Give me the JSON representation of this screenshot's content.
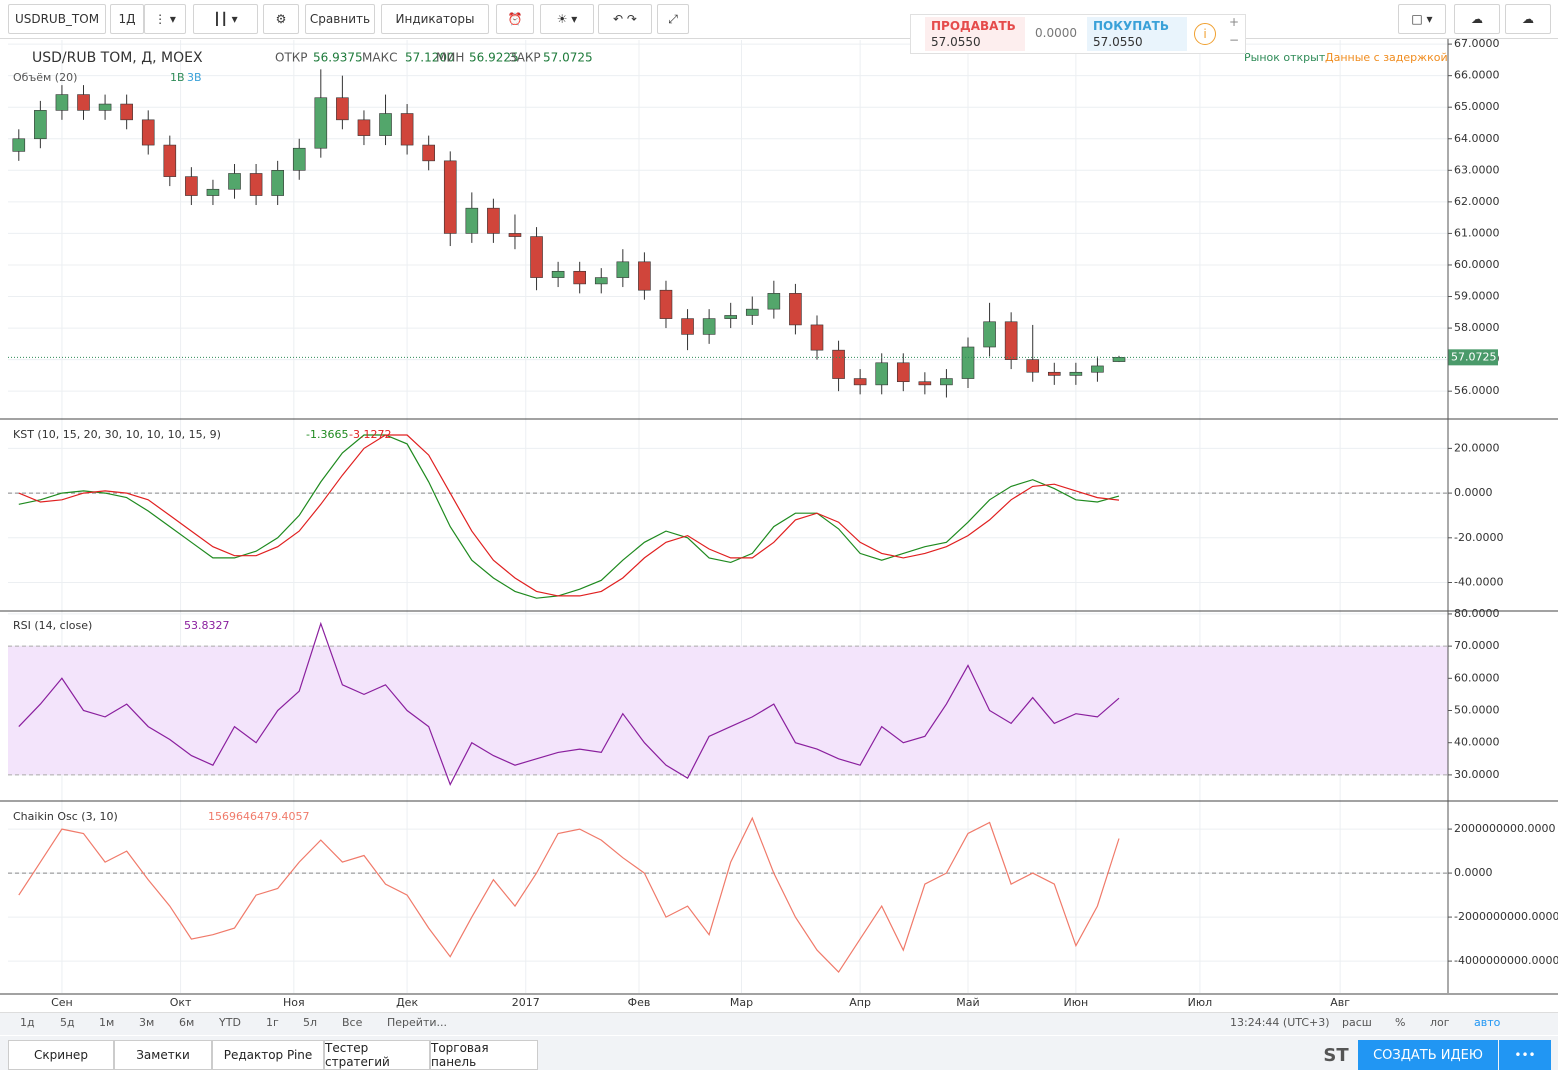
{
  "toolbar": {
    "symbol": "USDRUB_TOM",
    "interval": "1Д",
    "compare": "Сравнить",
    "indicators": "Индикаторы"
  },
  "trade": {
    "sell_label": "ПРОДАВАТЬ",
    "sell_price": "57.0550",
    "spread": "0.0000",
    "buy_label": "ПОКУПАТЬ",
    "buy_price": "57.0550"
  },
  "header": {
    "title": "USD/RUB TOM, Д, MOEX",
    "open_label": "ОТКР",
    "open": "56.9375",
    "high_label": "МАКС",
    "high": "57.1200",
    "low_label": "МИН",
    "low": "56.9225",
    "close_label": "ЗАКР",
    "close": "57.0725",
    "market_status": "Рынок открыт",
    "delay": "Данные с задержкой",
    "volume_legend": "Объём (20)",
    "volume_a": "1B",
    "volume_b": "3B"
  },
  "chart": {
    "x": [
      -8,
      -4,
      0,
      4,
      8,
      12,
      16,
      20,
      24,
      28,
      32,
      36,
      40,
      44,
      48,
      52,
      56,
      60,
      64,
      68,
      72,
      76,
      80,
      84,
      88,
      92,
      96,
      100,
      104,
      108,
      112,
      116,
      120,
      124,
      128,
      132,
      136,
      140,
      144,
      148,
      152,
      156,
      160,
      164,
      168,
      172,
      176,
      180,
      184,
      188,
      192,
      196
    ],
    "xlim": [
      -10,
      257
    ],
    "xticks": [
      {
        "value": 0,
        "label": "Сен"
      },
      {
        "value": 22,
        "label": "Окт"
      },
      {
        "value": 43,
        "label": "Ноя"
      },
      {
        "value": 64,
        "label": "Дек"
      },
      {
        "value": 86,
        "label": "2017"
      },
      {
        "value": 107,
        "label": "Фев"
      },
      {
        "value": 126,
        "label": "Мар"
      },
      {
        "value": 148,
        "label": "Апр"
      },
      {
        "value": 168,
        "label": "Май"
      },
      {
        "value": 188,
        "label": "Июн"
      },
      {
        "value": 211,
        "label": "Июл"
      },
      {
        "value": 237,
        "label": "Авг"
      }
    ],
    "grid": true,
    "candles": {
      "type": "candlestick",
      "up_color": "#53a66b",
      "down_color": "#d0453b",
      "open": [
        63.6,
        64.0,
        64.9,
        65.4,
        64.9,
        65.1,
        64.6,
        63.8,
        62.8,
        62.2,
        62.4,
        62.9,
        62.2,
        63.0,
        63.7,
        65.3,
        64.6,
        64.1,
        64.8,
        63.8,
        63.3,
        61.0,
        61.8,
        61.0,
        60.9,
        59.6,
        59.8,
        59.4,
        59.6,
        60.1,
        59.2,
        58.3,
        57.8,
        58.3,
        58.4,
        58.6,
        59.1,
        58.1,
        57.3,
        56.4,
        56.2,
        56.9,
        56.3,
        56.2,
        56.4,
        57.4,
        58.2,
        57.0,
        56.6,
        56.5,
        56.6,
        56.9375
      ],
      "high": [
        64.3,
        65.2,
        65.7,
        65.7,
        65.4,
        65.4,
        64.9,
        64.1,
        63.1,
        62.7,
        63.2,
        63.2,
        63.3,
        64.0,
        66.2,
        66.0,
        64.9,
        65.4,
        65.1,
        64.1,
        63.6,
        62.3,
        62.1,
        61.6,
        61.2,
        60.1,
        60.1,
        59.9,
        60.5,
        60.4,
        59.5,
        58.6,
        58.6,
        58.8,
        59.0,
        59.5,
        59.4,
        58.4,
        57.6,
        56.7,
        57.2,
        57.2,
        56.6,
        56.7,
        57.7,
        58.8,
        58.5,
        58.1,
        56.9,
        56.9,
        57.1,
        57.12
      ],
      "low": [
        63.3,
        63.7,
        64.6,
        64.6,
        64.6,
        64.3,
        63.5,
        62.5,
        61.9,
        61.9,
        62.1,
        61.9,
        61.9,
        62.7,
        63.4,
        64.3,
        63.8,
        63.8,
        63.5,
        63.0,
        60.6,
        60.7,
        60.7,
        60.5,
        59.2,
        59.3,
        59.1,
        59.1,
        59.3,
        58.9,
        58.0,
        57.3,
        57.5,
        58.0,
        58.1,
        58.3,
        57.8,
        57.0,
        56.0,
        55.9,
        55.9,
        56.0,
        55.9,
        55.8,
        56.1,
        57.1,
        56.7,
        56.3,
        56.2,
        56.2,
        56.3,
        56.9225
      ],
      "close": [
        64.0,
        64.9,
        65.4,
        64.9,
        65.1,
        64.6,
        63.8,
        62.8,
        62.2,
        62.4,
        62.9,
        62.2,
        63.0,
        63.7,
        65.3,
        64.6,
        64.1,
        64.8,
        63.8,
        63.3,
        61.0,
        61.8,
        61.0,
        60.9,
        59.6,
        59.8,
        59.4,
        59.6,
        60.1,
        59.2,
        58.3,
        57.8,
        58.3,
        58.4,
        58.6,
        59.1,
        58.1,
        57.3,
        56.4,
        56.2,
        56.9,
        56.3,
        56.2,
        56.4,
        57.4,
        58.2,
        57.0,
        56.6,
        56.5,
        56.6,
        56.8,
        57.0725
      ],
      "ylim": [
        55.15,
        67.13
      ],
      "yticks": [
        {
          "value": 56,
          "label": "56.0000"
        },
        {
          "value": 57,
          "label": "57.0000"
        },
        {
          "value": 58,
          "label": "58.0000"
        },
        {
          "value": 59,
          "label": "59.0000"
        },
        {
          "value": 60,
          "label": "60.0000"
        },
        {
          "value": 61,
          "label": "61.0000"
        },
        {
          "value": 62,
          "label": "62.0000"
        },
        {
          "value": 63,
          "label": "63.0000"
        },
        {
          "value": 64,
          "label": "64.0000"
        },
        {
          "value": 65,
          "label": "65.0000"
        },
        {
          "value": 66,
          "label": "66.0000"
        },
        {
          "value": 67,
          "label": "67.0000"
        }
      ]
    },
    "kst": {
      "type": "line",
      "legend": "KST (10, 15, 20, 30, 10, 10, 10, 15, 9)",
      "ylim": [
        -52.3,
        32.7
      ],
      "dashed_level": 0,
      "yticks": [
        {
          "value": 20,
          "label": "20.0000"
        },
        {
          "value": 0,
          "label": "0.0000"
        },
        {
          "value": -20,
          "label": "-20.0000"
        },
        {
          "value": -40,
          "label": "-40.0000"
        }
      ],
      "series": [
        {
          "color": "#1f8a1f",
          "values": [
            -5,
            -3,
            0,
            1,
            0,
            -2,
            -8,
            -15,
            -22,
            -29,
            -29,
            -26,
            -20,
            -10,
            5,
            18,
            26,
            26,
            22,
            5,
            -15,
            -30,
            -38,
            -44,
            -47,
            -46,
            -43,
            -39,
            -30,
            -22,
            -17,
            -20,
            -29,
            -31,
            -27,
            -15,
            -9,
            -9,
            -16,
            -27,
            -30,
            -27,
            -24,
            -22,
            -13,
            -3,
            3,
            6,
            2,
            -3,
            -4,
            -1.3665
          ]
        },
        {
          "color": "#e02020",
          "values": [
            0,
            -4,
            -3,
            0,
            1,
            0,
            -3,
            -10,
            -17,
            -24,
            -28,
            -28,
            -24,
            -17,
            -5,
            8,
            20,
            26,
            26,
            17,
            0,
            -17,
            -30,
            -38,
            -44,
            -46,
            -46,
            -44,
            -38,
            -29,
            -22,
            -19,
            -25,
            -29,
            -29,
            -22,
            -12,
            -9,
            -13,
            -22,
            -27,
            -29,
            -27,
            -24,
            -19,
            -12,
            -3,
            3,
            4,
            1,
            -2,
            -3.1272
          ]
        }
      ]
    },
    "rsi": {
      "type": "line",
      "legend": "RSI (14, close)",
      "color": "#8a1f9e",
      "band": [
        30,
        70
      ],
      "band_color": "#f3e4fb",
      "ylim": [
        22.2,
        80.6
      ],
      "yticks": [
        {
          "value": 30,
          "label": "30.0000"
        },
        {
          "value": 40,
          "label": "40.0000"
        },
        {
          "value": 50,
          "label": "50.0000"
        },
        {
          "value": 60,
          "label": "60.0000"
        },
        {
          "value": 70,
          "label": "70.0000"
        },
        {
          "value": 80,
          "label": "80.0000"
        }
      ],
      "values": [
        45,
        52,
        60,
        50,
        48,
        52,
        45,
        41,
        36,
        33,
        45,
        40,
        50,
        56,
        77,
        58,
        55,
        58,
        50,
        45,
        27,
        40,
        36,
        33,
        35,
        37,
        38,
        37,
        49,
        40,
        33,
        29,
        42,
        45,
        48,
        52,
        40,
        38,
        35,
        33,
        45,
        40,
        42,
        52,
        64,
        50,
        46,
        54,
        46,
        49,
        48,
        53.8327
      ]
    },
    "chaikin": {
      "type": "line",
      "legend": "Chaikin Osc (3, 10)",
      "color": "#f07a6a",
      "ylim": [
        -5450000000,
        3230000000
      ],
      "dashed_level": 0,
      "yticks": [
        {
          "value": 2000000000,
          "label": "2000000000.0000"
        },
        {
          "value": 0,
          "label": "0.0000"
        },
        {
          "value": -2000000000,
          "label": "-2000000000.0000"
        },
        {
          "value": -4000000000,
          "label": "-4000000000.0000"
        }
      ],
      "values": [
        -1000000000,
        500000000,
        2000000000,
        1800000000,
        500000000,
        1000000000,
        -300000000,
        -1500000000,
        -3000000000,
        -2800000000,
        -2500000000,
        -1000000000,
        -700000000,
        500000000,
        1500000000,
        500000000,
        800000000,
        -500000000,
        -1000000000,
        -2500000000,
        -3800000000,
        -2000000000,
        -300000000,
        -1500000000,
        0,
        1800000000,
        2000000000,
        1500000000,
        700000000,
        0,
        -2000000000,
        -1500000000,
        -2800000000,
        500000000,
        2500000000,
        0,
        -2000000000,
        -3500000000,
        -4500000000,
        -3000000000,
        -1500000000,
        -3500000000,
        -500000000,
        0,
        1800000000,
        2300000000,
        -500000000,
        0,
        -500000000,
        -3300000000,
        -1500000000,
        1569646479.4057
      ]
    }
  },
  "bottom_bar": {
    "ranges": [
      "1д",
      "5д",
      "1м",
      "3м",
      "6м",
      "YTD",
      "1г",
      "5л",
      "Все",
      "Перейти..."
    ],
    "time": "13:24:44 (UTC+3)",
    "options": [
      "расш",
      "%",
      "лог",
      "авто"
    ]
  },
  "footer": {
    "tabs": [
      "Скринер",
      "Заметки",
      "Редактор Pine",
      "Тестер стратегий",
      "Торговая панель"
    ],
    "brand": "ST",
    "create_idea": "СОЗДАТЬ ИДЕЮ"
  }
}
